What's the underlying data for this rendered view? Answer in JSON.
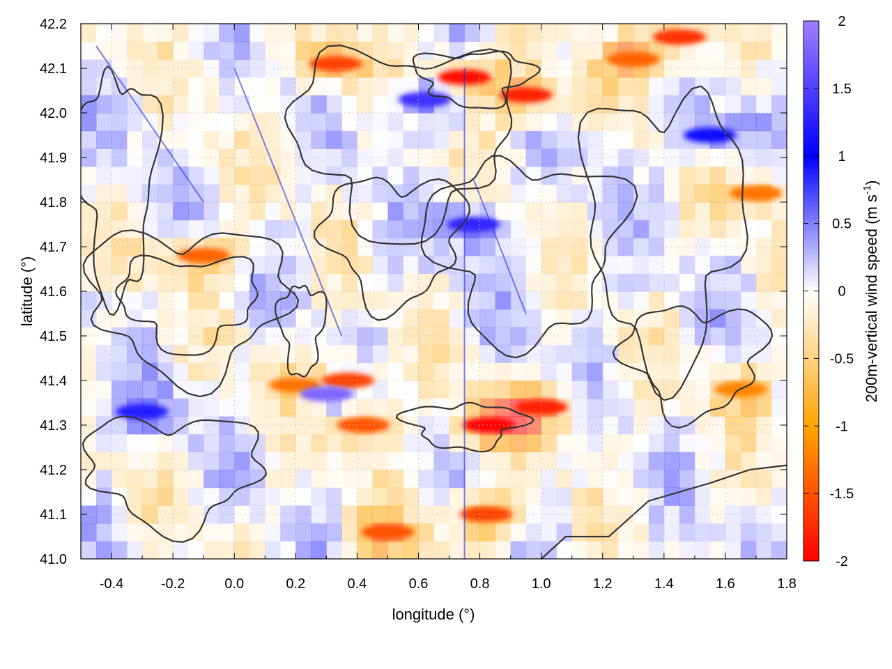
{
  "chart_data": {
    "type": "heatmap",
    "title": "",
    "xlabel": "longitude (°)",
    "ylabel": "latitude (°)",
    "colorbar_label_main": "200m-vertical wind speed (m s",
    "colorbar_label_sup": "-1",
    "colorbar_label_end": ")",
    "xlim": [
      -0.5,
      1.8
    ],
    "ylim": [
      41.0,
      42.2
    ],
    "x_ticks": [
      -0.4,
      -0.2,
      0.0,
      0.2,
      0.4,
      0.6,
      0.8,
      1.0,
      1.2,
      1.4,
      1.6,
      1.8
    ],
    "x_tick_labels": [
      "-0.4",
      "-0.2",
      "0.0",
      "0.2",
      "0.4",
      "0.6",
      "0.8",
      "1.0",
      "1.2",
      "1.4",
      "1.6",
      "1.8"
    ],
    "y_ticks": [
      41.0,
      41.1,
      41.2,
      41.3,
      41.4,
      41.5,
      41.6,
      41.7,
      41.8,
      41.9,
      42.0,
      42.1,
      42.2
    ],
    "y_tick_labels": [
      "41.0",
      "41.1",
      "41.2",
      "41.3",
      "41.4",
      "41.5",
      "41.6",
      "41.7",
      "41.8",
      "41.9",
      "42.0",
      "42.1",
      "42.2"
    ],
    "colorbar_range": [
      -2,
      2
    ],
    "colorbar_ticks": [
      -2,
      -1.5,
      -1,
      -0.5,
      0,
      0.5,
      1,
      1.5,
      2
    ],
    "colorbar_tick_labels": [
      "-2",
      "-1.5",
      "-1",
      "-0.5",
      "0",
      "0.5",
      "1",
      "1.5",
      "2"
    ],
    "colormap": [
      {
        "value": -2.0,
        "color": "#ff0000"
      },
      {
        "value": -1.0,
        "color": "#ffa500"
      },
      {
        "value": 0.0,
        "color": "#ffffff"
      },
      {
        "value": 1.0,
        "color": "#0000ff"
      },
      {
        "value": 2.0,
        "color": "#a080ff"
      }
    ],
    "grid": true,
    "contours": "dark gray terrain contours",
    "features": [
      {
        "lon": 0.75,
        "lat": 42.08,
        "value": -1.9
      },
      {
        "lon": 0.95,
        "lat": 42.04,
        "value": -1.8
      },
      {
        "lon": 0.33,
        "lat": 42.11,
        "value": -1.6
      },
      {
        "lon": 1.45,
        "lat": 42.17,
        "value": -1.7
      },
      {
        "lon": 1.3,
        "lat": 42.12,
        "value": -1.4
      },
      {
        "lon": 1.7,
        "lat": 41.82,
        "value": -1.3
      },
      {
        "lon": -0.1,
        "lat": 41.68,
        "value": -1.4
      },
      {
        "lon": 0.2,
        "lat": 41.39,
        "value": -1.3
      },
      {
        "lon": 0.37,
        "lat": 41.4,
        "value": -1.6
      },
      {
        "lon": 0.42,
        "lat": 41.3,
        "value": -1.5
      },
      {
        "lon": 0.83,
        "lat": 41.3,
        "value": -2.0
      },
      {
        "lon": 1.0,
        "lat": 41.34,
        "value": -1.8
      },
      {
        "lon": 0.5,
        "lat": 41.06,
        "value": -1.5
      },
      {
        "lon": 0.82,
        "lat": 41.1,
        "value": -1.6
      },
      {
        "lon": 1.65,
        "lat": 41.38,
        "value": -1.2
      },
      {
        "lon": 0.3,
        "lat": 41.37,
        "value": 1.8
      },
      {
        "lon": 0.62,
        "lat": 42.03,
        "value": 1.4
      },
      {
        "lon": 0.78,
        "lat": 41.75,
        "value": 1.3
      },
      {
        "lon": -0.3,
        "lat": 41.33,
        "value": 1.2
      },
      {
        "lon": 1.55,
        "lat": 41.95,
        "value": 1.1
      }
    ]
  }
}
